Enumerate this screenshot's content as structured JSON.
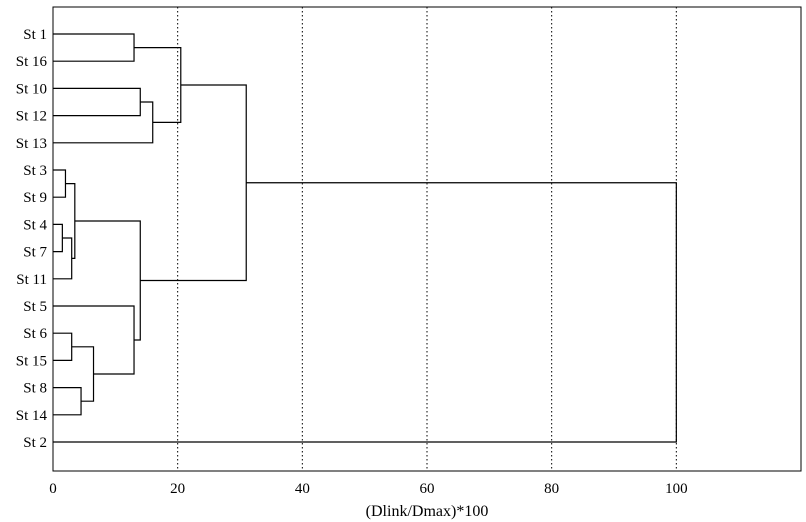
{
  "chart_data": {
    "type": "dendrogram",
    "orientation": "horizontal",
    "title": "",
    "xlabel": "(Dlink/Dmax)*100",
    "ylabel": "",
    "xlim": [
      0,
      120
    ],
    "x_ticks": [
      0,
      20,
      40,
      60,
      80,
      100
    ],
    "grid": "vertical-dotted",
    "leaves": [
      "St 1",
      "St 16",
      "St 10",
      "St 12",
      "St 13",
      "St 3",
      "St 9",
      "St 4",
      "St 7",
      "St 11",
      "St 5",
      "St 6",
      "St 15",
      "St 8",
      "St 14",
      "St 2"
    ],
    "merges": [
      {
        "id": "m1",
        "children": [
          "St 1",
          "St 16"
        ],
        "height": 13
      },
      {
        "id": "m2",
        "children": [
          "St 10",
          "St 12"
        ],
        "height": 14
      },
      {
        "id": "m3",
        "children": [
          "m2",
          "St 13"
        ],
        "height": 16
      },
      {
        "id": "m4",
        "children": [
          "m1",
          "m3"
        ],
        "height": 20.5
      },
      {
        "id": "m5",
        "children": [
          "St 3",
          "St 9"
        ],
        "height": 2
      },
      {
        "id": "m6",
        "children": [
          "St 4",
          "St 7"
        ],
        "height": 1.5
      },
      {
        "id": "m7",
        "children": [
          "m6",
          "St 11"
        ],
        "height": 3
      },
      {
        "id": "m8",
        "children": [
          "m5",
          "m7"
        ],
        "height": 3.5
      },
      {
        "id": "m9",
        "children": [
          "St 6",
          "St 15"
        ],
        "height": 3
      },
      {
        "id": "m10",
        "children": [
          "St 8",
          "St 14"
        ],
        "height": 4.5
      },
      {
        "id": "m11",
        "children": [
          "m9",
          "m10"
        ],
        "height": 6.5
      },
      {
        "id": "m12",
        "children": [
          "St 5",
          "m11"
        ],
        "height": 13
      },
      {
        "id": "m13",
        "children": [
          "m8",
          "m12"
        ],
        "height": 14
      },
      {
        "id": "m14",
        "children": [
          "m4",
          "m13"
        ],
        "height": 31
      },
      {
        "id": "m15",
        "children": [
          "m14",
          "St 2"
        ],
        "height": 100
      }
    ]
  }
}
